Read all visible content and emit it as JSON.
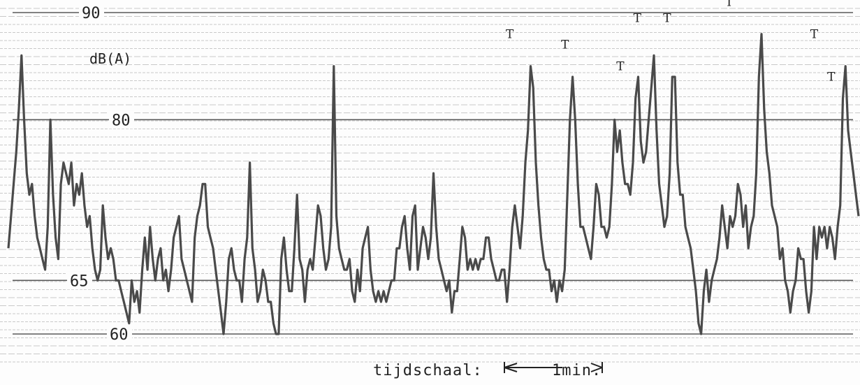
{
  "chart_data": {
    "type": "line",
    "ylabel": "dB(A)",
    "y_ticks": [
      90,
      80,
      65,
      60
    ],
    "ylim": [
      58,
      92
    ],
    "grid": true,
    "time_scale_label": "tijdschaal:",
    "time_scale_unit": "1min.",
    "peak_label": "T",
    "series": [
      {
        "values": [
          68,
          71,
          74,
          77,
          81,
          86,
          80,
          75,
          73,
          74,
          71,
          69,
          68,
          67,
          66,
          70,
          80,
          73,
          69,
          67,
          74,
          76,
          75,
          74,
          76,
          72,
          74,
          73,
          75,
          72,
          70,
          71,
          68,
          66,
          65,
          66,
          72,
          69,
          67,
          68,
          67,
          65,
          65,
          64,
          63,
          62,
          61,
          65,
          63,
          64,
          62,
          66,
          69,
          66,
          70,
          67,
          65,
          67,
          68,
          65,
          66,
          64,
          66,
          69,
          70,
          71,
          67,
          66,
          65,
          64,
          63,
          69,
          71,
          72,
          74,
          74,
          70,
          69,
          68,
          66,
          64,
          62,
          60,
          63,
          67,
          68,
          66,
          65,
          65,
          63,
          67,
          69,
          76,
          68,
          66,
          63,
          64,
          66,
          65,
          63,
          63,
          61,
          60,
          60,
          67,
          69,
          66,
          64,
          64,
          68,
          73,
          67,
          66,
          63,
          66,
          67,
          66,
          69,
          72,
          71,
          68,
          66,
          67,
          70,
          85,
          71,
          68,
          67,
          66,
          66,
          67,
          64,
          63,
          66,
          64,
          68,
          69,
          70,
          66,
          64,
          63,
          64,
          63,
          64,
          63,
          64,
          65,
          65,
          68,
          68,
          70,
          71,
          68,
          66,
          71,
          72,
          66,
          68,
          70,
          69,
          67,
          69,
          75,
          70,
          67,
          66,
          65,
          64,
          65,
          62,
          64,
          64,
          67,
          70,
          69,
          66,
          67,
          66,
          67,
          66,
          67,
          67,
          69,
          69,
          67,
          66,
          65,
          65,
          66,
          66,
          63,
          66,
          70,
          72,
          70,
          68,
          71,
          76,
          79,
          85,
          83,
          76,
          72,
          69,
          67,
          66,
          66,
          64,
          65,
          63,
          65,
          64,
          66,
          73,
          80,
          84,
          80,
          74,
          70,
          70,
          69,
          68,
          67,
          70,
          74,
          73,
          70,
          70,
          69,
          70,
          74,
          80,
          77,
          79,
          76,
          74,
          74,
          73,
          76,
          82,
          84,
          78,
          76,
          77,
          80,
          83,
          86,
          79,
          74,
          72,
          70,
          71,
          75,
          84,
          84,
          76,
          73,
          73,
          70,
          69,
          68,
          66,
          64,
          61,
          60,
          64,
          66,
          63,
          65,
          66,
          67,
          69,
          72,
          70,
          68,
          71,
          70,
          71,
          74,
          73,
          70,
          72,
          68,
          70,
          71,
          75,
          84,
          88,
          81,
          77,
          75,
          72,
          71,
          70,
          67,
          68,
          65,
          64,
          62,
          64,
          65,
          68,
          67,
          67,
          64,
          62,
          64,
          70,
          67,
          70,
          69,
          70,
          68,
          70,
          69,
          67,
          70,
          72,
          82,
          85,
          79,
          77,
          75,
          73,
          71
        ]
      }
    ],
    "annotations": [
      {
        "label": "T",
        "x": 0.59,
        "y": 87.5
      },
      {
        "label": "T",
        "x": 0.655,
        "y": 86.5
      },
      {
        "label": "T",
        "x": 0.72,
        "y": 84.5
      },
      {
        "label": "T",
        "x": 0.74,
        "y": 89
      },
      {
        "label": "T",
        "x": 0.775,
        "y": 89
      },
      {
        "label": "T",
        "x": 0.848,
        "y": 90.5
      },
      {
        "label": "T",
        "x": 0.948,
        "y": 87.5
      },
      {
        "label": "T",
        "x": 0.968,
        "y": 83.5
      }
    ]
  }
}
